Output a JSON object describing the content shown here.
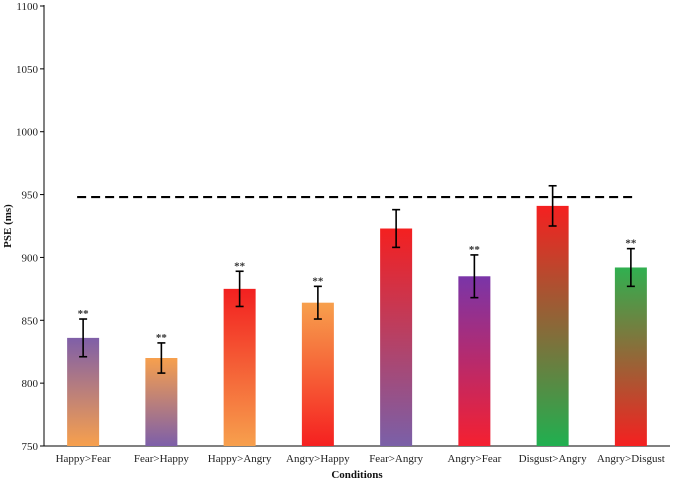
{
  "chart_data": {
    "type": "bar",
    "title": "",
    "xlabel": "Conditions",
    "ylabel": "PSE (ms)",
    "ylim": [
      750,
      1100
    ],
    "yticks": [
      750,
      800,
      850,
      900,
      950,
      1000,
      1050,
      1100
    ],
    "categories": [
      "Happy>Fear",
      "Fear>Happy",
      "Happy>Angry",
      "Angry>Happy",
      "Fear>Angry",
      "Angry>Fear",
      "Disgust>Angry",
      "Angry>Disgust"
    ],
    "values": [
      836,
      820,
      875,
      864,
      923,
      885,
      941,
      892
    ],
    "errors": [
      15,
      12,
      14,
      13,
      15,
      17,
      16,
      15
    ],
    "significance": [
      "**",
      "**",
      "**",
      "**",
      "",
      "**",
      "",
      "**"
    ],
    "reference_line": 948,
    "bar_gradients": [
      {
        "top": "#7f5fa8",
        "bottom": "#f7a04d"
      },
      {
        "top": "#f7a04d",
        "bottom": "#7d5fa9"
      },
      {
        "top": "#f22020",
        "bottom": "#f7a04d"
      },
      {
        "top": "#f7a04d",
        "bottom": "#f52020"
      },
      {
        "top": "#f42020",
        "bottom": "#7a60a8"
      },
      {
        "top": "#7a35a8",
        "bottom": "#f52030"
      },
      {
        "top": "#f52020",
        "bottom": "#20b050"
      },
      {
        "top": "#30b050",
        "bottom": "#f52020"
      }
    ]
  }
}
